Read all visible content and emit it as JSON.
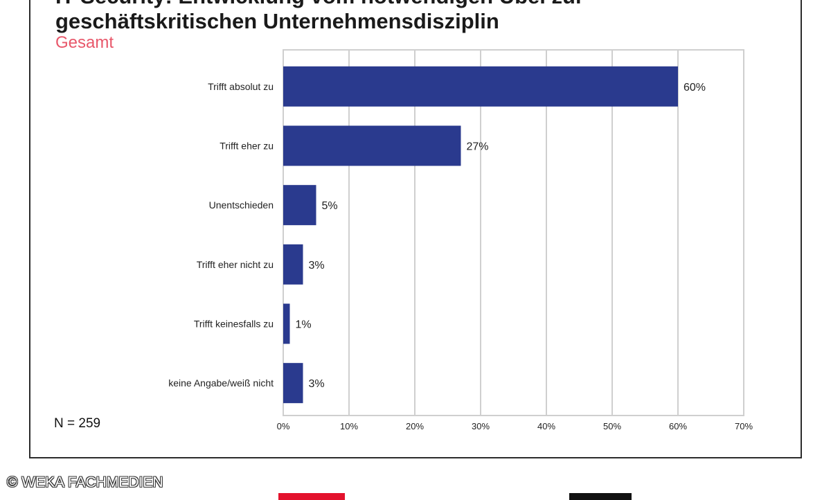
{
  "title_lines": [
    "IT-Security: Entwicklung vom notwendigen Übel zur",
    "geschäftskritischen Unternehmensdisziplin"
  ],
  "subtitle": "Gesamt",
  "note": "N = 259",
  "credit": "© WEKA FACHMEDIEN",
  "colors": {
    "bar": "#2a3a8e",
    "grid": "#cfcfcf",
    "subtitle": "#e8576a"
  },
  "chart_data": {
    "type": "bar",
    "orientation": "horizontal",
    "categories": [
      "Trifft absolut zu",
      "Trifft eher zu",
      "Unentschieden",
      "Trifft eher nicht zu",
      "Trifft keinesfalls zu",
      "keine Angabe/weiß nicht"
    ],
    "values": [
      60,
      27,
      5,
      3,
      1,
      3
    ],
    "value_labels": [
      "60%",
      "27%",
      "5%",
      "3%",
      "1%",
      "3%"
    ],
    "xlim": [
      0,
      70
    ],
    "xticks": [
      "0%",
      "10%",
      "20%",
      "30%",
      "40%",
      "50%",
      "60%",
      "70%"
    ],
    "grid": true
  }
}
